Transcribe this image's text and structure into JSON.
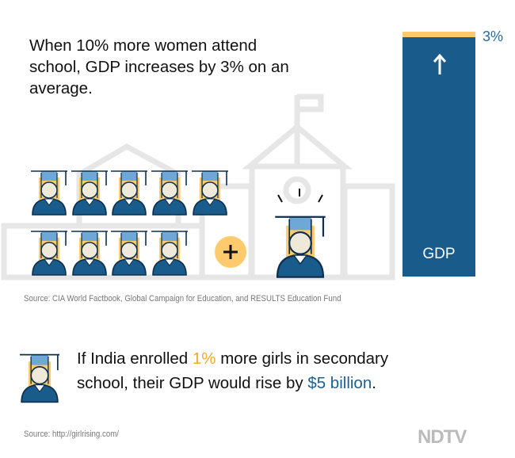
{
  "headline": "When 10% more women attend school, GDP increases by 3% on an average.",
  "gdp_bar": {
    "label": "GDP",
    "increase_label": "3%",
    "increase_percent": 3,
    "color": "#195b8b",
    "increase_color": "#fdcb6e"
  },
  "graduates": {
    "row1_count": 5,
    "row2_count": 4,
    "added_count": 1
  },
  "source1": "Source: CIA World Factbook, Global Campaign for Education, and RESULTS Education Fund",
  "fact": {
    "part1": "If India enrolled ",
    "highlight1": "1%",
    "part2": " more girls in secondary school, their GDP would rise by ",
    "highlight2": "$5 billion",
    "part3": "."
  },
  "source2": "Source: http://girlrising.com/",
  "logo": "NDTV",
  "colors": {
    "navy": "#195b8b",
    "yellow": "#fdcb6e",
    "cap": "#6fa8d6"
  }
}
